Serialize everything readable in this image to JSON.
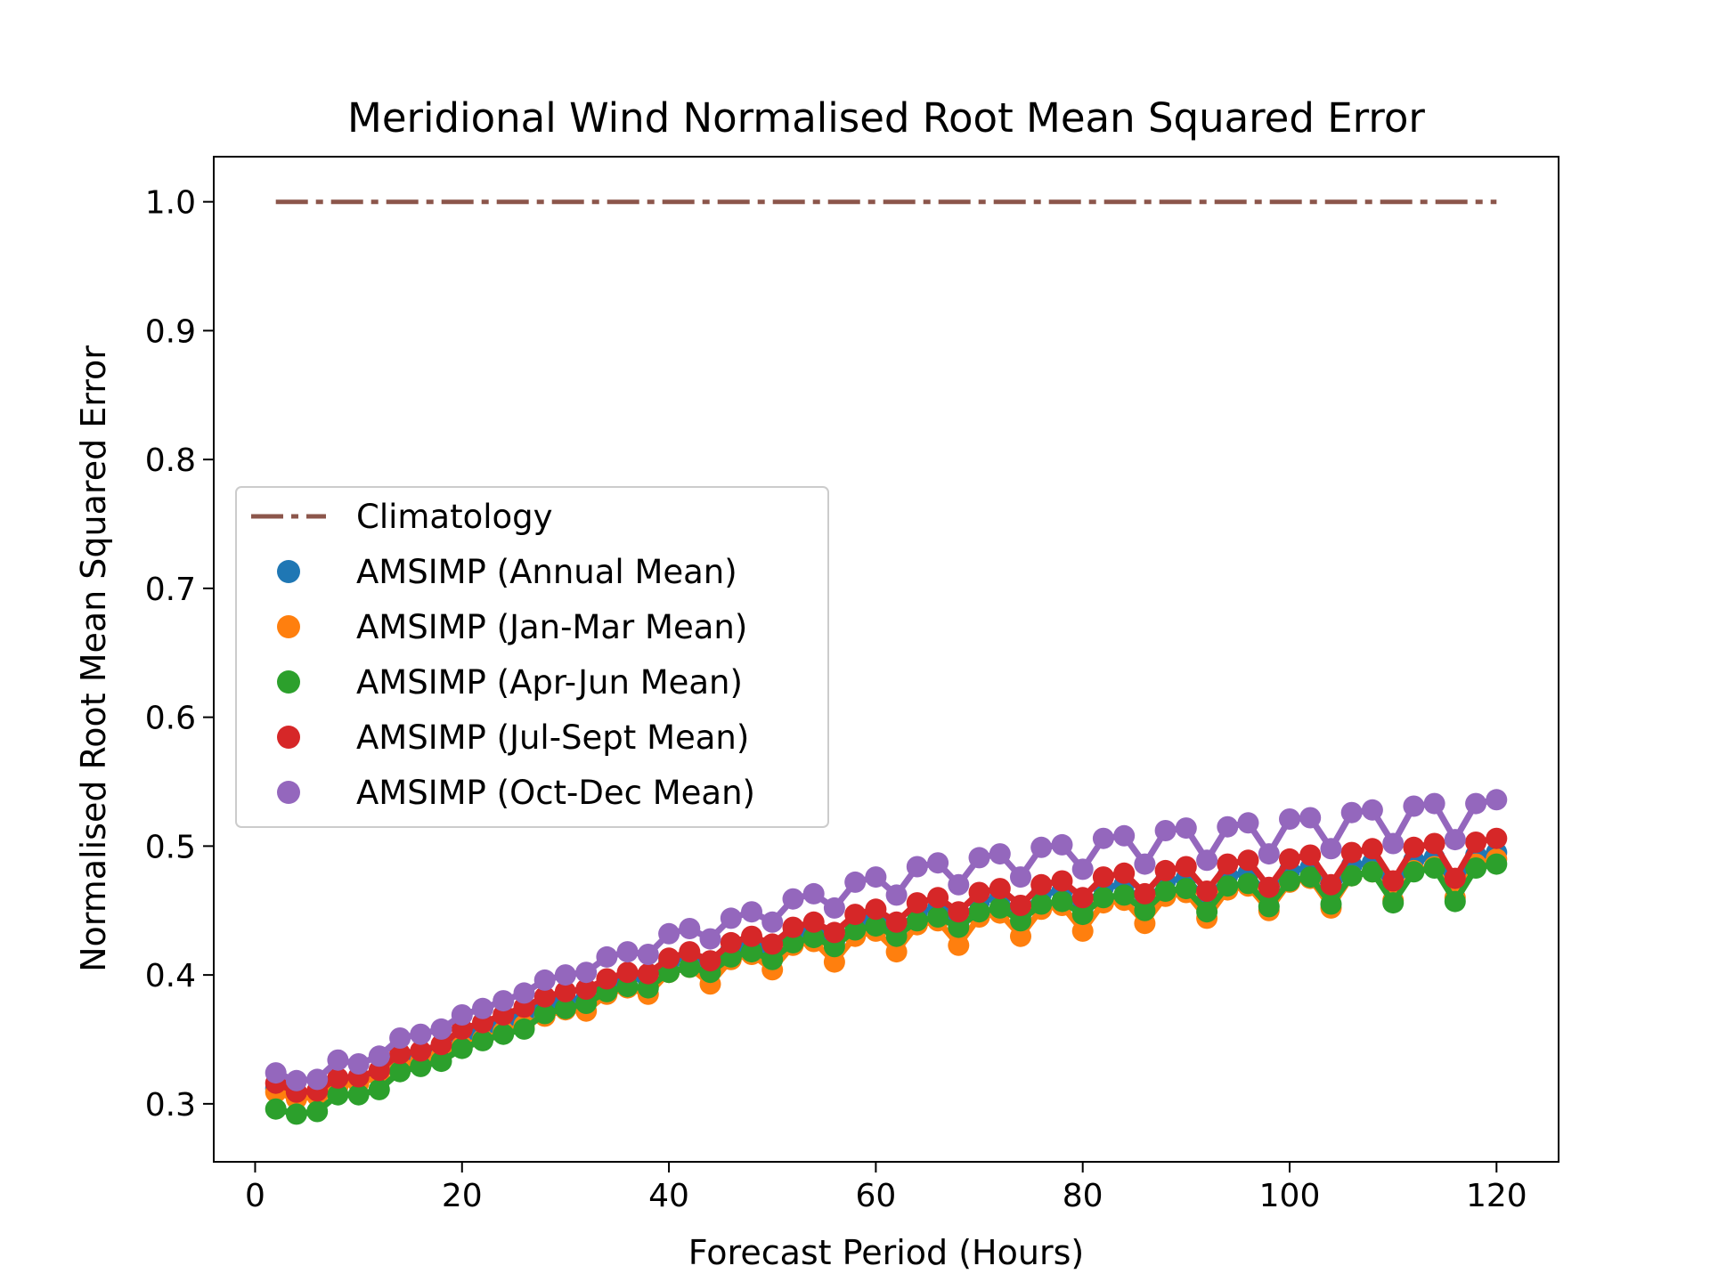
{
  "chart_data": {
    "type": "line",
    "title": "Meridional Wind Normalised Root Mean Squared Error",
    "xlabel": "Forecast Period (Hours)",
    "ylabel": "Normalised Root Mean Squared Error",
    "xlim": [
      -4,
      126
    ],
    "ylim": [
      0.255,
      1.035
    ],
    "xticks": [
      0,
      20,
      40,
      60,
      80,
      100,
      120
    ],
    "yticks": [
      0.3,
      0.4,
      0.5,
      0.6,
      0.7,
      0.8,
      0.9,
      1.0
    ],
    "x": [
      2,
      4,
      6,
      8,
      10,
      12,
      14,
      16,
      18,
      20,
      22,
      24,
      26,
      28,
      30,
      32,
      34,
      36,
      38,
      40,
      42,
      44,
      46,
      48,
      50,
      52,
      54,
      56,
      58,
      60,
      62,
      64,
      66,
      68,
      70,
      72,
      74,
      76,
      78,
      80,
      82,
      84,
      86,
      88,
      90,
      92,
      94,
      96,
      98,
      100,
      102,
      104,
      106,
      108,
      110,
      112,
      114,
      116,
      118,
      120
    ],
    "grid": false,
    "legend_position": "center-left",
    "series": [
      {
        "name": "Climatology",
        "style": "dashdot",
        "color": "#8c564b",
        "values": [
          1,
          1,
          1,
          1,
          1,
          1,
          1,
          1,
          1,
          1,
          1,
          1,
          1,
          1,
          1,
          1,
          1,
          1,
          1,
          1,
          1,
          1,
          1,
          1,
          1,
          1,
          1,
          1,
          1,
          1,
          1,
          1,
          1,
          1,
          1,
          1,
          1,
          1,
          1,
          1,
          1,
          1,
          1,
          1,
          1,
          1,
          1,
          1,
          1,
          1,
          1,
          1,
          1,
          1,
          1,
          1,
          1,
          1,
          1,
          1
        ]
      },
      {
        "name": "AMSIMP (Annual Mean)",
        "style": "marker-line",
        "color": "#1f77b4",
        "values": [
          0.312,
          0.308,
          0.309,
          0.318,
          0.319,
          0.324,
          0.334,
          0.337,
          0.341,
          0.35,
          0.356,
          0.362,
          0.368,
          0.376,
          0.381,
          0.382,
          0.392,
          0.398,
          0.396,
          0.41,
          0.414,
          0.406,
          0.42,
          0.425,
          0.418,
          0.432,
          0.435,
          0.425,
          0.44,
          0.444,
          0.433,
          0.449,
          0.452,
          0.44,
          0.457,
          0.46,
          0.446,
          0.463,
          0.465,
          0.451,
          0.468,
          0.47,
          0.455,
          0.473,
          0.475,
          0.458,
          0.477,
          0.479,
          0.461,
          0.481,
          0.483,
          0.464,
          0.485,
          0.487,
          0.467,
          0.489,
          0.491,
          0.469,
          0.493,
          0.495
        ]
      },
      {
        "name": "AMSIMP (Jan-Mar Mean)",
        "style": "marker-line",
        "color": "#ff7f0e",
        "values": [
          0.309,
          0.304,
          0.306,
          0.314,
          0.316,
          0.321,
          0.33,
          0.333,
          0.337,
          0.345,
          0.35,
          0.356,
          0.361,
          0.368,
          0.373,
          0.372,
          0.385,
          0.39,
          0.385,
          0.402,
          0.406,
          0.393,
          0.412,
          0.416,
          0.404,
          0.423,
          0.426,
          0.41,
          0.43,
          0.434,
          0.418,
          0.439,
          0.442,
          0.423,
          0.445,
          0.448,
          0.43,
          0.451,
          0.454,
          0.434,
          0.456,
          0.458,
          0.44,
          0.461,
          0.464,
          0.444,
          0.466,
          0.469,
          0.45,
          0.472,
          0.475,
          0.452,
          0.477,
          0.48,
          0.458,
          0.481,
          0.484,
          0.46,
          0.486,
          0.49
        ]
      },
      {
        "name": "AMSIMP (Apr-Jun Mean)",
        "style": "marker-line",
        "color": "#2ca02c",
        "values": [
          0.296,
          0.292,
          0.294,
          0.307,
          0.307,
          0.311,
          0.325,
          0.329,
          0.333,
          0.343,
          0.349,
          0.354,
          0.358,
          0.37,
          0.374,
          0.378,
          0.387,
          0.391,
          0.39,
          0.402,
          0.406,
          0.402,
          0.414,
          0.418,
          0.412,
          0.425,
          0.429,
          0.422,
          0.435,
          0.438,
          0.43,
          0.442,
          0.445,
          0.437,
          0.449,
          0.452,
          0.442,
          0.455,
          0.457,
          0.447,
          0.46,
          0.462,
          0.45,
          0.465,
          0.467,
          0.449,
          0.469,
          0.471,
          0.453,
          0.473,
          0.476,
          0.455,
          0.477,
          0.48,
          0.456,
          0.48,
          0.483,
          0.457,
          0.483,
          0.486
        ]
      },
      {
        "name": "AMSIMP (Jul-Sept Mean)",
        "style": "marker-line",
        "color": "#d62728",
        "values": [
          0.316,
          0.309,
          0.31,
          0.32,
          0.321,
          0.326,
          0.339,
          0.341,
          0.346,
          0.358,
          0.363,
          0.369,
          0.375,
          0.383,
          0.387,
          0.389,
          0.397,
          0.402,
          0.401,
          0.413,
          0.418,
          0.411,
          0.425,
          0.43,
          0.424,
          0.437,
          0.441,
          0.433,
          0.447,
          0.451,
          0.441,
          0.456,
          0.46,
          0.449,
          0.464,
          0.467,
          0.454,
          0.47,
          0.473,
          0.46,
          0.476,
          0.479,
          0.463,
          0.481,
          0.484,
          0.465,
          0.486,
          0.489,
          0.468,
          0.49,
          0.493,
          0.47,
          0.495,
          0.498,
          0.473,
          0.499,
          0.502,
          0.475,
          0.503,
          0.506
        ]
      },
      {
        "name": "AMSIMP (Oct-Dec Mean)",
        "style": "marker-line",
        "color": "#9467bd",
        "values": [
          0.324,
          0.318,
          0.319,
          0.334,
          0.331,
          0.337,
          0.351,
          0.354,
          0.358,
          0.369,
          0.374,
          0.38,
          0.386,
          0.396,
          0.4,
          0.402,
          0.414,
          0.418,
          0.416,
          0.432,
          0.436,
          0.428,
          0.444,
          0.449,
          0.441,
          0.459,
          0.463,
          0.452,
          0.472,
          0.476,
          0.462,
          0.484,
          0.487,
          0.47,
          0.491,
          0.494,
          0.476,
          0.499,
          0.501,
          0.482,
          0.506,
          0.508,
          0.486,
          0.512,
          0.514,
          0.489,
          0.515,
          0.518,
          0.494,
          0.521,
          0.522,
          0.498,
          0.526,
          0.528,
          0.502,
          0.531,
          0.533,
          0.505,
          0.533,
          0.536
        ]
      }
    ]
  }
}
